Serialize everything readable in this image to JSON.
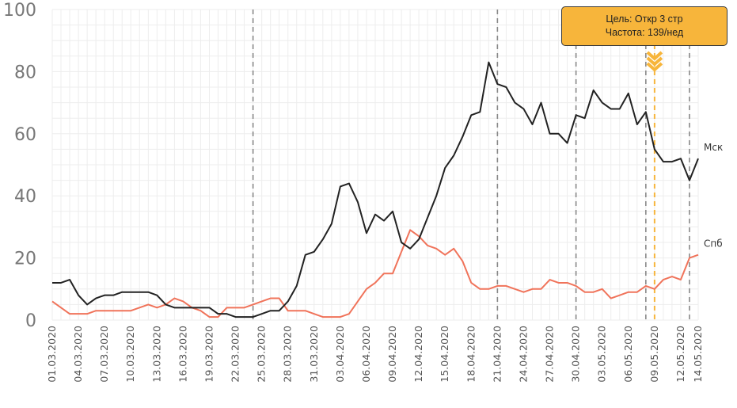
{
  "chart_data": {
    "type": "line",
    "x": [
      "01.03.2020",
      "02.03.2020",
      "03.03.2020",
      "04.03.2020",
      "05.03.2020",
      "06.03.2020",
      "07.03.2020",
      "08.03.2020",
      "09.03.2020",
      "10.03.2020",
      "11.03.2020",
      "12.03.2020",
      "13.03.2020",
      "14.03.2020",
      "15.03.2020",
      "16.03.2020",
      "17.03.2020",
      "18.03.2020",
      "19.03.2020",
      "20.03.2020",
      "21.03.2020",
      "22.03.2020",
      "23.03.2020",
      "24.03.2020",
      "25.03.2020",
      "26.03.2020",
      "27.03.2020",
      "28.03.2020",
      "29.03.2020",
      "30.03.2020",
      "31.03.2020",
      "01.04.2020",
      "02.04.2020",
      "03.04.2020",
      "04.04.2020",
      "05.04.2020",
      "06.04.2020",
      "07.04.2020",
      "08.04.2020",
      "09.04.2020",
      "10.04.2020",
      "11.04.2020",
      "12.04.2020",
      "13.04.2020",
      "14.04.2020",
      "15.04.2020",
      "16.04.2020",
      "17.04.2020",
      "18.04.2020",
      "19.04.2020",
      "20.04.2020",
      "21.04.2020",
      "22.04.2020",
      "23.04.2020",
      "24.04.2020",
      "25.04.2020",
      "26.04.2020",
      "27.04.2020",
      "28.04.2020",
      "29.04.2020",
      "30.04.2020",
      "01.05.2020",
      "02.05.2020",
      "03.05.2020",
      "04.05.2020",
      "05.05.2020",
      "06.05.2020",
      "07.05.2020",
      "08.05.2020",
      "09.05.2020",
      "10.05.2020",
      "11.05.2020",
      "12.05.2020",
      "13.05.2020",
      "14.05.2020"
    ],
    "tick_labels": [
      "01.03.2020",
      "04.03.2020",
      "07.03.2020",
      "10.03.2020",
      "13.03.2020",
      "16.03.2020",
      "19.03.2020",
      "22.03.2020",
      "25.03.2020",
      "28.03.2020",
      "31.03.2020",
      "03.04.2020",
      "06.04.2020",
      "09.04.2020",
      "12.04.2020",
      "15.04.2020",
      "18.04.2020",
      "21.04.2020",
      "24.04.2020",
      "27.04.2020",
      "30.04.2020",
      "03.05.2020",
      "06.05.2020",
      "09.05.2020",
      "12.05.2020",
      "14.05.2020"
    ],
    "series": [
      {
        "name": "Мск",
        "color": "#222222",
        "values": [
          12,
          12,
          13,
          8,
          5,
          7,
          8,
          8,
          9,
          9,
          9,
          9,
          8,
          5,
          4,
          4,
          4,
          4,
          4,
          2,
          2,
          1,
          1,
          1,
          2,
          3,
          3,
          6,
          11,
          21,
          22,
          26,
          31,
          43,
          44,
          38,
          28,
          34,
          32,
          35,
          25,
          23,
          26,
          33,
          40,
          49,
          53,
          59,
          66,
          67,
          83,
          76,
          75,
          70,
          68,
          63,
          70,
          60,
          60,
          57,
          66,
          65,
          74,
          70,
          68,
          68,
          73,
          63,
          67,
          55,
          51,
          51,
          52,
          45,
          52
        ]
      },
      {
        "name": "Спб",
        "color": "#f0735a",
        "values": [
          6,
          4,
          2,
          2,
          2,
          3,
          3,
          3,
          3,
          3,
          4,
          5,
          4,
          5,
          7,
          6,
          4,
          3,
          1,
          1,
          4,
          4,
          4,
          5,
          6,
          7,
          7,
          3,
          3,
          3,
          2,
          1,
          1,
          1,
          2,
          6,
          10,
          12,
          15,
          15,
          22,
          29,
          27,
          24,
          23,
          21,
          23,
          19,
          12,
          10,
          10,
          11,
          11,
          10,
          9,
          10,
          10,
          13,
          12,
          12,
          11,
          9,
          9,
          10,
          7,
          8,
          9,
          9,
          11,
          10,
          13,
          14,
          13,
          20,
          21
        ]
      }
    ],
    "ylim": [
      0,
      100
    ],
    "yticks": [
      0,
      20,
      40,
      60,
      80,
      100
    ],
    "vertical_lines": [
      {
        "x": "24.03.2020",
        "color": "#888888",
        "style": "dashed"
      },
      {
        "x": "21.04.2020",
        "color": "#888888",
        "style": "dashed"
      },
      {
        "x": "30.04.2020",
        "color": "#888888",
        "style": "dashed"
      },
      {
        "x": "08.05.2020",
        "color": "#888888",
        "style": "dashed"
      },
      {
        "x": "13.05.2020",
        "color": "#888888",
        "style": "dashed"
      },
      {
        "x": "09.05.2020",
        "color": "#f7b53b",
        "style": "dashed",
        "highlight": true
      }
    ],
    "grid": true,
    "series_label_placement": "right-end"
  },
  "tooltip": {
    "line1": "Цель: Откр 3 стр",
    "line2": "Частота: 139/нед",
    "color": "#f7b53b",
    "marker_icon": "chevron-down-triple-icon"
  }
}
